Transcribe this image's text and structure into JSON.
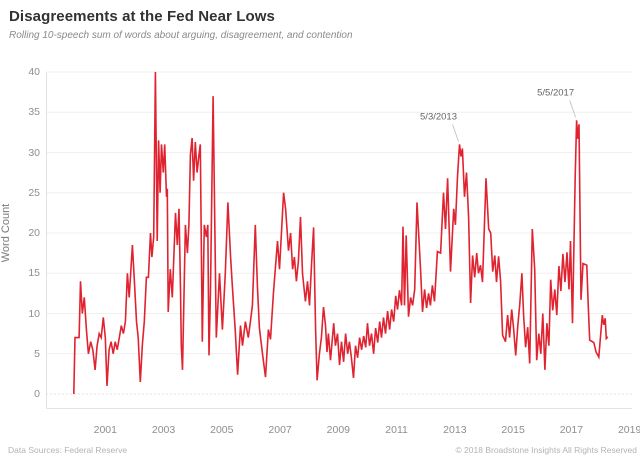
{
  "header": {
    "title": "Disagreements at the Fed Near Lows",
    "subtitle": "Rolling 10-speech sum of words about arguing, disagreement, and contention"
  },
  "footer": {
    "left": "Data Sources: Federal Reserve",
    "right": "© 2018 Broadstone Insights All Rights Reserved"
  },
  "colors": {
    "line": "#e02330",
    "grid": "#efefef",
    "zero_line": "#c9c9c9",
    "axis_border": "#e2e2e2",
    "leader_line": "#c9c9c9",
    "tick_text": "#8e8e8e",
    "annotation_text": "#636363"
  },
  "chart_data": {
    "type": "line",
    "title": "Disagreements at the Fed Near Lows",
    "subtitle": "Rolling 10-speech sum of words about arguing, disagreement, and contention",
    "xlabel": "",
    "ylabel": "Word Count",
    "xlim": [
      1999.8,
      2019.1
    ],
    "ylim": [
      0,
      40
    ],
    "grid": true,
    "xticks": [
      "2001",
      "2003",
      "2005",
      "2007",
      "2009",
      "2011",
      "2013",
      "2015",
      "2017",
      "2019"
    ],
    "xtick_years": [
      2001,
      2003,
      2005,
      2007,
      2009,
      2011,
      2013,
      2015,
      2017,
      2019
    ],
    "yticks": [
      0,
      5,
      10,
      15,
      20,
      25,
      30,
      35,
      40
    ],
    "annotations": [
      {
        "label": "5/3/2013",
        "year": 2013.16,
        "value": 31
      },
      {
        "label": "5/5/2017",
        "year": 2017.18,
        "value": 34
      }
    ],
    "series": [
      {
        "name": "Word Count",
        "color": "#e02330",
        "points": [
          [
            1999.92,
            0
          ],
          [
            1999.96,
            7
          ],
          [
            2000.1,
            7
          ],
          [
            2000.15,
            14
          ],
          [
            2000.21,
            10
          ],
          [
            2000.28,
            12
          ],
          [
            2000.35,
            8
          ],
          [
            2000.42,
            5
          ],
          [
            2000.5,
            6.5
          ],
          [
            2000.57,
            5.5
          ],
          [
            2000.65,
            3
          ],
          [
            2000.72,
            6
          ],
          [
            2000.79,
            7.5
          ],
          [
            2000.86,
            7
          ],
          [
            2000.93,
            9.5
          ],
          [
            2001.0,
            7
          ],
          [
            2001.06,
            1
          ],
          [
            2001.13,
            5.5
          ],
          [
            2001.2,
            6.5
          ],
          [
            2001.27,
            5
          ],
          [
            2001.34,
            6.5
          ],
          [
            2001.41,
            5.5
          ],
          [
            2001.48,
            7
          ],
          [
            2001.55,
            8.5
          ],
          [
            2001.62,
            7.5
          ],
          [
            2001.69,
            9
          ],
          [
            2001.76,
            15
          ],
          [
            2001.82,
            12
          ],
          [
            2001.93,
            18.5
          ],
          [
            2002.0,
            14
          ],
          [
            2002.07,
            9
          ],
          [
            2002.13,
            7
          ],
          [
            2002.2,
            1.5
          ],
          [
            2002.27,
            6
          ],
          [
            2002.34,
            9
          ],
          [
            2002.41,
            14.5
          ],
          [
            2002.48,
            14.5
          ],
          [
            2002.55,
            20
          ],
          [
            2002.6,
            17
          ],
          [
            2002.66,
            19.5
          ],
          [
            2002.72,
            40
          ],
          [
            2002.78,
            19
          ],
          [
            2002.83,
            31.5
          ],
          [
            2002.88,
            25
          ],
          [
            2002.93,
            31
          ],
          [
            2002.99,
            27.5
          ],
          [
            2003.04,
            31
          ],
          [
            2003.1,
            24.5
          ],
          [
            2003.13,
            25.5
          ],
          [
            2003.16,
            10.2
          ],
          [
            2003.23,
            15.5
          ],
          [
            2003.3,
            12
          ],
          [
            2003.41,
            22.5
          ],
          [
            2003.47,
            18.5
          ],
          [
            2003.53,
            23
          ],
          [
            2003.58,
            13
          ],
          [
            2003.61,
            6
          ],
          [
            2003.65,
            3
          ],
          [
            2003.75,
            21
          ],
          [
            2003.82,
            17.5
          ],
          [
            2003.87,
            21
          ],
          [
            2003.92,
            29.7
          ],
          [
            2003.98,
            31.8
          ],
          [
            2004.03,
            26.5
          ],
          [
            2004.09,
            31.3
          ],
          [
            2004.15,
            27.5
          ],
          [
            2004.21,
            29.5
          ],
          [
            2004.26,
            31
          ],
          [
            2004.33,
            6.5
          ],
          [
            2004.4,
            21
          ],
          [
            2004.47,
            19.5
          ],
          [
            2004.52,
            21
          ],
          [
            2004.56,
            4.8
          ],
          [
            2004.61,
            13
          ],
          [
            2004.7,
            37
          ],
          [
            2004.81,
            7
          ],
          [
            2004.92,
            15
          ],
          [
            2005.02,
            8
          ],
          [
            2005.12,
            15
          ],
          [
            2005.21,
            23.8
          ],
          [
            2005.3,
            17
          ],
          [
            2005.36,
            13.5
          ],
          [
            2005.46,
            8
          ],
          [
            2005.54,
            2.4
          ],
          [
            2005.64,
            8.5
          ],
          [
            2005.71,
            6
          ],
          [
            2005.81,
            9
          ],
          [
            2005.91,
            7
          ],
          [
            2005.98,
            9
          ],
          [
            2006.05,
            11
          ],
          [
            2006.15,
            21
          ],
          [
            2006.22,
            13.4
          ],
          [
            2006.29,
            8.2
          ],
          [
            2006.4,
            4.9
          ],
          [
            2006.5,
            2.1
          ],
          [
            2006.6,
            8
          ],
          [
            2006.67,
            6.8
          ],
          [
            2006.77,
            12.5
          ],
          [
            2006.91,
            19
          ],
          [
            2006.98,
            15.5
          ],
          [
            2007.12,
            25
          ],
          [
            2007.19,
            23
          ],
          [
            2007.29,
            17.8
          ],
          [
            2007.36,
            20
          ],
          [
            2007.43,
            15.5
          ],
          [
            2007.49,
            17
          ],
          [
            2007.56,
            14
          ],
          [
            2007.63,
            16.5
          ],
          [
            2007.7,
            22
          ],
          [
            2007.77,
            15
          ],
          [
            2007.87,
            11.5
          ],
          [
            2007.94,
            14
          ],
          [
            2008.01,
            11
          ],
          [
            2008.08,
            16
          ],
          [
            2008.15,
            20.7
          ],
          [
            2008.22,
            8
          ],
          [
            2008.27,
            1.7
          ],
          [
            2008.35,
            5
          ],
          [
            2008.42,
            7
          ],
          [
            2008.49,
            10.8
          ],
          [
            2008.56,
            8.5
          ],
          [
            2008.61,
            5.2
          ],
          [
            2008.66,
            7.5
          ],
          [
            2008.73,
            4.2
          ],
          [
            2008.84,
            8.8
          ],
          [
            2008.9,
            6
          ],
          [
            2008.97,
            7.5
          ],
          [
            2009.04,
            3.6
          ],
          [
            2009.11,
            6.5
          ],
          [
            2009.18,
            4
          ],
          [
            2009.25,
            7.5
          ],
          [
            2009.32,
            5
          ],
          [
            2009.38,
            6.5
          ],
          [
            2009.45,
            4.5
          ],
          [
            2009.52,
            2
          ],
          [
            2009.59,
            6
          ],
          [
            2009.66,
            4.5
          ],
          [
            2009.73,
            7
          ],
          [
            2009.8,
            5.5
          ],
          [
            2009.87,
            7.2
          ],
          [
            2009.94,
            5.8
          ],
          [
            2010.0,
            8.8
          ],
          [
            2010.07,
            6
          ],
          [
            2010.14,
            7.5
          ],
          [
            2010.21,
            5
          ],
          [
            2010.28,
            8.2
          ],
          [
            2010.35,
            6.4
          ],
          [
            2010.42,
            9
          ],
          [
            2010.48,
            7
          ],
          [
            2010.55,
            9.5
          ],
          [
            2010.62,
            7.5
          ],
          [
            2010.69,
            10.3
          ],
          [
            2010.76,
            8
          ],
          [
            2010.83,
            10.5
          ],
          [
            2010.9,
            9
          ],
          [
            2010.97,
            12.2
          ],
          [
            2011.03,
            10.5
          ],
          [
            2011.1,
            12.9
          ],
          [
            2011.17,
            11
          ],
          [
            2011.22,
            20.8
          ],
          [
            2011.27,
            11
          ],
          [
            2011.33,
            19.7
          ],
          [
            2011.41,
            9.6
          ],
          [
            2011.48,
            12
          ],
          [
            2011.55,
            11
          ],
          [
            2011.62,
            13
          ],
          [
            2011.7,
            23.8
          ],
          [
            2011.82,
            15.6
          ],
          [
            2011.89,
            10.2
          ],
          [
            2011.96,
            13
          ],
          [
            2012.03,
            10.7
          ],
          [
            2012.1,
            12.5
          ],
          [
            2012.16,
            11
          ],
          [
            2012.23,
            13.5
          ],
          [
            2012.3,
            11.5
          ],
          [
            2012.4,
            17.7
          ],
          [
            2012.51,
            17.5
          ],
          [
            2012.61,
            25
          ],
          [
            2012.68,
            20.5
          ],
          [
            2012.75,
            26.8
          ],
          [
            2012.85,
            15.2
          ],
          [
            2012.96,
            23
          ],
          [
            2013.02,
            21
          ],
          [
            2013.09,
            27
          ],
          [
            2013.16,
            31
          ],
          [
            2013.21,
            29.5
          ],
          [
            2013.26,
            30.5
          ],
          [
            2013.33,
            24.5
          ],
          [
            2013.4,
            27.5
          ],
          [
            2013.47,
            22
          ],
          [
            2013.54,
            11.3
          ],
          [
            2013.61,
            17.2
          ],
          [
            2013.68,
            14.5
          ],
          [
            2013.75,
            17.5
          ],
          [
            2013.81,
            15
          ],
          [
            2013.88,
            16
          ],
          [
            2013.95,
            13.9
          ],
          [
            2014.07,
            26.8
          ],
          [
            2014.16,
            20.5
          ],
          [
            2014.23,
            20
          ],
          [
            2014.3,
            15.2
          ],
          [
            2014.37,
            17.2
          ],
          [
            2014.43,
            13.9
          ],
          [
            2014.5,
            17.1
          ],
          [
            2014.57,
            14
          ],
          [
            2014.64,
            7.3
          ],
          [
            2014.74,
            6.5
          ],
          [
            2014.81,
            9.8
          ],
          [
            2014.88,
            7
          ],
          [
            2014.95,
            10.5
          ],
          [
            2015.02,
            8
          ],
          [
            2015.09,
            4.8
          ],
          [
            2015.16,
            8.5
          ],
          [
            2015.23,
            11.2
          ],
          [
            2015.3,
            15
          ],
          [
            2015.36,
            9.8
          ],
          [
            2015.43,
            5.8
          ],
          [
            2015.5,
            8.3
          ],
          [
            2015.57,
            3.8
          ],
          [
            2015.66,
            20.5
          ],
          [
            2015.74,
            15.5
          ],
          [
            2015.81,
            4.2
          ],
          [
            2015.88,
            7.5
          ],
          [
            2015.95,
            5
          ],
          [
            2016.02,
            10
          ],
          [
            2016.09,
            3
          ],
          [
            2016.16,
            8.8
          ],
          [
            2016.23,
            6
          ],
          [
            2016.29,
            14.2
          ],
          [
            2016.36,
            10.4
          ],
          [
            2016.43,
            13
          ],
          [
            2016.5,
            9.8
          ],
          [
            2016.57,
            15.9
          ],
          [
            2016.64,
            12.8
          ],
          [
            2016.71,
            17.4
          ],
          [
            2016.78,
            13.9
          ],
          [
            2016.85,
            17.6
          ],
          [
            2016.92,
            13
          ],
          [
            2016.97,
            19
          ],
          [
            2017.04,
            8.8
          ],
          [
            2017.13,
            27
          ],
          [
            2017.18,
            34
          ],
          [
            2017.22,
            31.7
          ],
          [
            2017.26,
            33.5
          ],
          [
            2017.33,
            11.7
          ],
          [
            2017.4,
            16.2
          ],
          [
            2017.53,
            16
          ],
          [
            2017.58,
            10.8
          ],
          [
            2017.63,
            6.7
          ],
          [
            2017.77,
            6.4
          ],
          [
            2017.85,
            5.2
          ],
          [
            2017.94,
            4.6
          ],
          [
            2018.06,
            9.8
          ],
          [
            2018.11,
            8.6
          ],
          [
            2018.16,
            9.4
          ],
          [
            2018.2,
            6.9
          ],
          [
            2018.25,
            7.1
          ]
        ]
      }
    ],
    "legend": "none"
  }
}
